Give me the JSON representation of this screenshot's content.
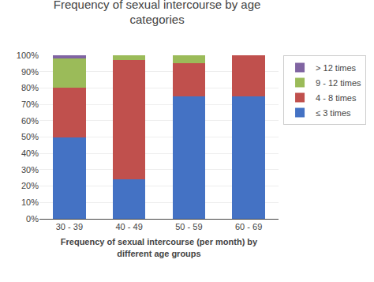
{
  "chart_data": {
    "type": "bar",
    "stacked": true,
    "title": "Frequency of sexual intercourse by age\ncategories",
    "xlabel": "Frequency of sexual intercourse (per month) by\ndifferent age groups",
    "categories": [
      "30 - 39",
      "40 - 49",
      "50 - 59",
      "60 - 69"
    ],
    "series": [
      {
        "name": "≤ 3 times",
        "color": "#4472C4",
        "values": [
          50,
          24,
          75,
          75
        ]
      },
      {
        "name": "4 - 8 times",
        "color": "#C0504D",
        "values": [
          30,
          73,
          20,
          25
        ]
      },
      {
        "name": "9 - 12 times",
        "color": "#9BBB59",
        "values": [
          18,
          3,
          5,
          0
        ]
      },
      {
        "name": "> 12 times",
        "color": "#8064A2",
        "values": [
          2,
          0,
          0,
          0
        ]
      }
    ],
    "ylim": [
      0,
      100
    ],
    "yticks": [
      {
        "value": 0,
        "label": "0%"
      },
      {
        "value": 10,
        "label": "10%"
      },
      {
        "value": 20,
        "label": "20%"
      },
      {
        "value": 30,
        "label": "30%"
      },
      {
        "value": 40,
        "label": "40%"
      },
      {
        "value": 50,
        "label": "50%"
      },
      {
        "value": 60,
        "label": "60%"
      },
      {
        "value": 70,
        "label": "70%"
      },
      {
        "value": 80,
        "label": "80%"
      },
      {
        "value": 90,
        "label": "90%"
      },
      {
        "value": 100,
        "label": "100%"
      }
    ],
    "grid": true,
    "legend": "right"
  }
}
